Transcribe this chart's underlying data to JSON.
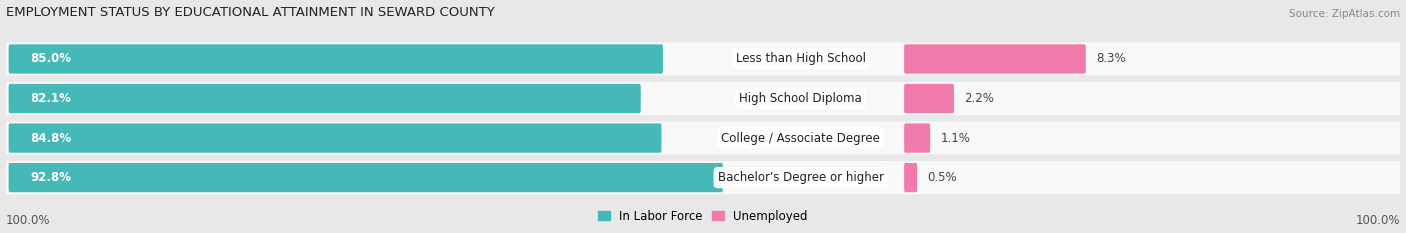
{
  "title": "EMPLOYMENT STATUS BY EDUCATIONAL ATTAINMENT IN SEWARD COUNTY",
  "source": "Source: ZipAtlas.com",
  "categories": [
    "Less than High School",
    "High School Diploma",
    "College / Associate Degree",
    "Bachelor's Degree or higher"
  ],
  "labor_force": [
    85.0,
    82.1,
    84.8,
    92.8
  ],
  "unemployed": [
    8.3,
    2.2,
    1.1,
    0.5
  ],
  "labor_force_color": "#45b8b8",
  "unemployed_color": "#f07aaa",
  "background_color": "#e8e8e8",
  "row_bg_color": "#f8f8f8",
  "title_fontsize": 9.5,
  "source_fontsize": 7.5,
  "label_fontsize": 8.5,
  "value_fontsize": 8.5,
  "legend_fontsize": 8.5,
  "axis_label_left": "100.0%",
  "axis_label_right": "100.0%"
}
